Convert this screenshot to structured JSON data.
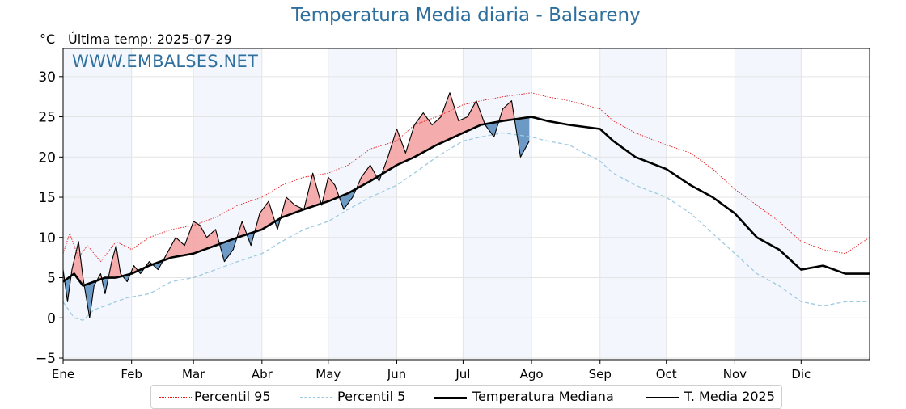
{
  "chart_data": {
    "type": "line",
    "title": "Temperatura Media diaria - Balsareny",
    "ylabel": "°C",
    "subtitle": "Última temp: 2025-07-29",
    "watermark": "WWW.EMBALSES.NET",
    "ylim": [
      -5.2,
      33.5
    ],
    "xlim": [
      1,
      366
    ],
    "yticks": [
      "30",
      "25",
      "20",
      "15",
      "10",
      "5",
      "0",
      "−5"
    ],
    "ytick_values": [
      30,
      25,
      20,
      15,
      10,
      5,
      0,
      -5
    ],
    "months": [
      {
        "label": "Ene",
        "day": 1
      },
      {
        "label": "Feb",
        "day": 32
      },
      {
        "label": "Mar",
        "day": 60
      },
      {
        "label": "Abr",
        "day": 91
      },
      {
        "label": "May",
        "day": 121
      },
      {
        "label": "Jun",
        "day": 152
      },
      {
        "label": "Jul",
        "day": 182
      },
      {
        "label": "Ago",
        "day": 213
      },
      {
        "label": "Sep",
        "day": 244
      },
      {
        "label": "Oct",
        "day": 274
      },
      {
        "label": "Nov",
        "day": 305
      },
      {
        "label": "Dic",
        "day": 335
      }
    ],
    "grid": true,
    "legend_position": "bottom",
    "colors": {
      "p95": "#e31a1c",
      "p5": "#9ecae1",
      "median": "#000000",
      "current": "#000000",
      "above_fill": "#f4a3a3",
      "above_fill_strong": "#e8464b",
      "below_fill": "#5d8fbe",
      "title": "#2e6f9e",
      "band": "#e9f1fb"
    },
    "series": [
      {
        "name": "Percentil 95",
        "key": "p95",
        "x": [
          1,
          4,
          8,
          12,
          18,
          25,
          32,
          40,
          50,
          60,
          70,
          80,
          91,
          100,
          110,
          121,
          130,
          140,
          152,
          160,
          170,
          182,
          190,
          200,
          213,
          220,
          230,
          244,
          250,
          260,
          274,
          285,
          295,
          305,
          315,
          325,
          335,
          345,
          355,
          366
        ],
        "values": [
          8.0,
          10.5,
          7.5,
          9.0,
          7.0,
          9.5,
          8.5,
          10.0,
          11.0,
          11.5,
          12.5,
          14.0,
          15.0,
          16.5,
          17.5,
          18.0,
          19.0,
          21.0,
          22.0,
          24.0,
          25.0,
          26.5,
          27.0,
          27.5,
          28.0,
          27.5,
          27.0,
          26.0,
          24.5,
          23.0,
          21.5,
          20.5,
          18.5,
          16.0,
          14.0,
          12.0,
          9.5,
          8.5,
          8.0,
          10.0
        ]
      },
      {
        "name": "Percentil 5",
        "key": "p5",
        "x": [
          1,
          6,
          10,
          15,
          20,
          30,
          40,
          50,
          60,
          70,
          80,
          91,
          100,
          110,
          121,
          130,
          140,
          152,
          160,
          170,
          182,
          190,
          200,
          213,
          220,
          230,
          244,
          250,
          260,
          274,
          285,
          295,
          305,
          315,
          325,
          335,
          345,
          355,
          366
        ],
        "values": [
          2.0,
          0.0,
          -0.3,
          1.0,
          1.5,
          2.5,
          3.0,
          4.5,
          5.0,
          6.0,
          7.0,
          8.0,
          9.5,
          11.0,
          12.0,
          13.5,
          15.0,
          16.5,
          18.0,
          20.0,
          22.0,
          22.5,
          23.0,
          22.5,
          22.0,
          21.5,
          19.5,
          18.0,
          16.5,
          15.0,
          13.0,
          10.5,
          8.0,
          5.5,
          4.0,
          2.0,
          1.5,
          2.0,
          2.0
        ]
      },
      {
        "name": "Temperatura Mediana",
        "key": "median",
        "x": [
          1,
          6,
          10,
          15,
          20,
          25,
          32,
          40,
          50,
          60,
          70,
          80,
          91,
          100,
          110,
          121,
          130,
          140,
          152,
          160,
          170,
          182,
          190,
          200,
          213,
          220,
          230,
          244,
          250,
          260,
          274,
          285,
          295,
          305,
          315,
          325,
          335,
          345,
          355,
          366
        ],
        "values": [
          4.5,
          5.5,
          4.0,
          4.5,
          5.0,
          5.0,
          5.5,
          6.5,
          7.5,
          8.0,
          9.0,
          10.0,
          11.0,
          12.5,
          13.5,
          14.5,
          15.5,
          17.0,
          19.0,
          20.0,
          21.5,
          23.0,
          24.0,
          24.5,
          25.0,
          24.5,
          24.0,
          23.5,
          22.0,
          20.0,
          18.5,
          16.5,
          15.0,
          13.0,
          10.0,
          8.5,
          6.0,
          6.5,
          5.5,
          5.5
        ]
      },
      {
        "name": "T. Media 2025",
        "key": "current",
        "x": [
          1,
          3,
          5,
          8,
          10,
          13,
          15,
          18,
          20,
          23,
          25,
          27,
          30,
          33,
          36,
          40,
          44,
          48,
          52,
          56,
          60,
          63,
          66,
          70,
          74,
          78,
          82,
          86,
          90,
          94,
          98,
          102,
          106,
          110,
          114,
          118,
          121,
          124,
          128,
          132,
          136,
          140,
          144,
          148,
          152,
          156,
          160,
          164,
          168,
          172,
          176,
          180,
          184,
          188,
          192,
          196,
          200,
          204,
          208,
          212
        ],
        "values": [
          6.0,
          2.0,
          6.0,
          9.5,
          5.0,
          0.0,
          4.0,
          5.5,
          3.0,
          7.0,
          9.0,
          5.5,
          4.5,
          6.5,
          5.5,
          7.0,
          6.0,
          8.0,
          10.0,
          9.0,
          12.0,
          11.5,
          10.0,
          11.0,
          7.0,
          8.5,
          12.0,
          9.0,
          13.0,
          14.5,
          11.0,
          15.0,
          14.0,
          13.5,
          18.0,
          14.0,
          17.5,
          16.5,
          13.5,
          15.0,
          17.5,
          19.0,
          17.0,
          20.0,
          23.5,
          20.5,
          24.0,
          25.5,
          24.0,
          25.0,
          28.0,
          24.5,
          25.0,
          27.0,
          24.0,
          22.5,
          26.0,
          27.0,
          20.0,
          22.0
        ]
      }
    ]
  }
}
